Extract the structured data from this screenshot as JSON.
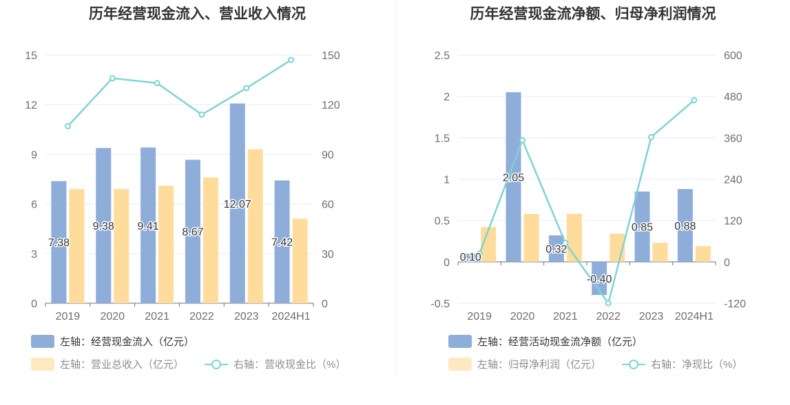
{
  "colors": {
    "bar_primary": "#8eadd9",
    "bar_secondary": "#ffdc9b",
    "line": "#7fd3d3",
    "grid": "#e6ebf8",
    "axis_text": "#6e6e6e"
  },
  "chart_data": [
    {
      "type": "bar",
      "title": "历年经营现金流入、营业收入情况",
      "categories": [
        "2019",
        "2020",
        "2021",
        "2022",
        "2023",
        "2024H1"
      ],
      "left_axis": {
        "min": 0,
        "max": 15,
        "ticks": [
          "0",
          "3",
          "6",
          "9",
          "12",
          "15"
        ]
      },
      "right_axis": {
        "min": 0,
        "max": 150,
        "ticks": [
          "0",
          "30",
          "60",
          "90",
          "120",
          "150"
        ]
      },
      "series": [
        {
          "name": "左轴：经营现金流入（亿元）",
          "kind": "bar",
          "axis": "left",
          "values": [
            7.38,
            9.38,
            9.41,
            8.67,
            12.07,
            7.42
          ],
          "labels": [
            "7.38",
            "9.38",
            "9.41",
            "8.67",
            "12.07",
            "7.42"
          ]
        },
        {
          "name": "左轴：营业总收入（亿元）",
          "kind": "bar",
          "axis": "left",
          "values": [
            6.9,
            6.9,
            7.1,
            7.6,
            9.3,
            5.1
          ]
        },
        {
          "name": "右轴：营收现金比（%）",
          "kind": "line",
          "axis": "right",
          "values": [
            107,
            136,
            133,
            114,
            130,
            147
          ]
        }
      ],
      "grid": true,
      "legend_position": "bottom-left"
    },
    {
      "type": "bar",
      "title": "历年经营现金流净额、归母净利润情况",
      "categories": [
        "2019",
        "2020",
        "2021",
        "2022",
        "2023",
        "2024H1"
      ],
      "left_axis": {
        "min": -0.5,
        "max": 2.5,
        "ticks": [
          "-0.5",
          "0",
          "0.5",
          "1",
          "1.5",
          "2",
          "2.5"
        ]
      },
      "right_axis": {
        "min": -120,
        "max": 600,
        "ticks": [
          "-120",
          "0",
          "120",
          "240",
          "360",
          "480",
          "600"
        ]
      },
      "series": [
        {
          "name": "左轴：经营活动现金流净额（亿元）",
          "kind": "bar",
          "axis": "left",
          "values": [
            0.1,
            2.05,
            0.32,
            -0.4,
            0.85,
            0.88
          ],
          "labels": [
            "0.10",
            "2.05",
            "0.32",
            "-0.40",
            "0.85",
            "0.88"
          ]
        },
        {
          "name": "左轴：归母净利润（亿元）",
          "kind": "bar",
          "axis": "left",
          "values": [
            0.42,
            0.58,
            0.58,
            0.34,
            0.23,
            0.19
          ]
        },
        {
          "name": "右轴：净现比（%）",
          "kind": "line",
          "axis": "right",
          "values": [
            24,
            353,
            55,
            -120,
            362,
            469
          ]
        }
      ],
      "grid": true,
      "legend_position": "bottom-left"
    }
  ]
}
